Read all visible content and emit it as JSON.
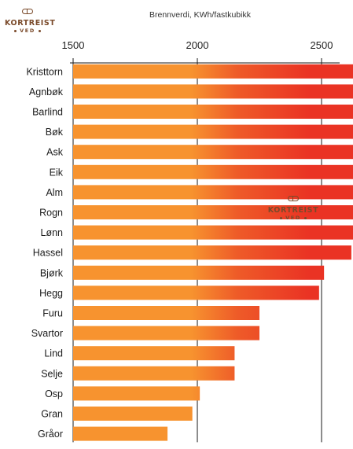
{
  "logo": {
    "word": "KORTREIST",
    "sub": "VED",
    "icon": "log-pill-icon",
    "color": "#7a4a2a"
  },
  "chart_data": {
    "type": "bar",
    "orientation": "horizontal",
    "title": "Brennverdi, KWh/fastkubikk",
    "xlabel": "",
    "ylabel": "",
    "xlim": [
      1500,
      3650
    ],
    "xticks": [
      1500,
      2000,
      2500,
      3000,
      3500
    ],
    "grid": true,
    "categories": [
      "Kristtorn",
      "Agnbøk",
      "Barlind",
      "Bøk",
      "Ask",
      "Eik",
      "Alm",
      "Rogn",
      "Lønn",
      "Hassel",
      "Bjørk",
      "Hegg",
      "Furu",
      "Svartor",
      "Lind",
      "Selje",
      "Osp",
      "Gran",
      "Gråor"
    ],
    "values": [
      3370,
      3350,
      3070,
      2870,
      2800,
      2800,
      2750,
      2750,
      2720,
      2620,
      2510,
      2490,
      2250,
      2250,
      2150,
      2150,
      2010,
      1980,
      1880
    ],
    "colors": {
      "base": "#f7932f",
      "high": "#ea3324",
      "gridline": "#1a1a1a"
    }
  }
}
